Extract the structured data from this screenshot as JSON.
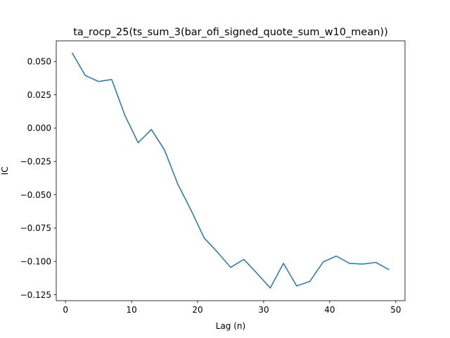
{
  "chart_data": {
    "type": "line",
    "title": "ta_rocp_25(ts_sum_3(bar_ofi_signed_quote_sum_w10_mean))",
    "xlabel": "Lag (n)",
    "ylabel": "IC",
    "xlim": [
      -1.4,
      51.4
    ],
    "ylim": [
      -0.1295,
      0.0655
    ],
    "xticks": [
      0,
      10,
      20,
      30,
      40,
      50
    ],
    "yticks": [
      -0.125,
      -0.1,
      -0.075,
      -0.05,
      -0.025,
      0.0,
      0.025,
      0.05
    ],
    "xtick_labels": [
      "0",
      "10",
      "20",
      "30",
      "40",
      "50"
    ],
    "ytick_labels": [
      "−0.125",
      "−0.100",
      "−0.075",
      "−0.050",
      "−0.025",
      "0.000",
      "0.025",
      "0.050"
    ],
    "grid": false,
    "series": [
      {
        "color": "#1f77b4",
        "x": [
          1,
          3,
          5,
          7,
          9,
          11,
          13,
          15,
          17,
          19,
          21,
          23,
          25,
          27,
          29,
          31,
          33,
          35,
          37,
          39,
          41,
          43,
          45,
          47,
          49
        ],
        "values": [
          0.0565,
          0.0395,
          0.035,
          0.0365,
          0.0095,
          -0.011,
          -0.001,
          -0.0165,
          -0.042,
          -0.0615,
          -0.0825,
          -0.093,
          -0.1045,
          -0.0985,
          -0.109,
          -0.12,
          -0.1015,
          -0.1185,
          -0.115,
          -0.1005,
          -0.096,
          -0.1015,
          -0.102,
          -0.1008,
          -0.1063
        ]
      }
    ]
  }
}
